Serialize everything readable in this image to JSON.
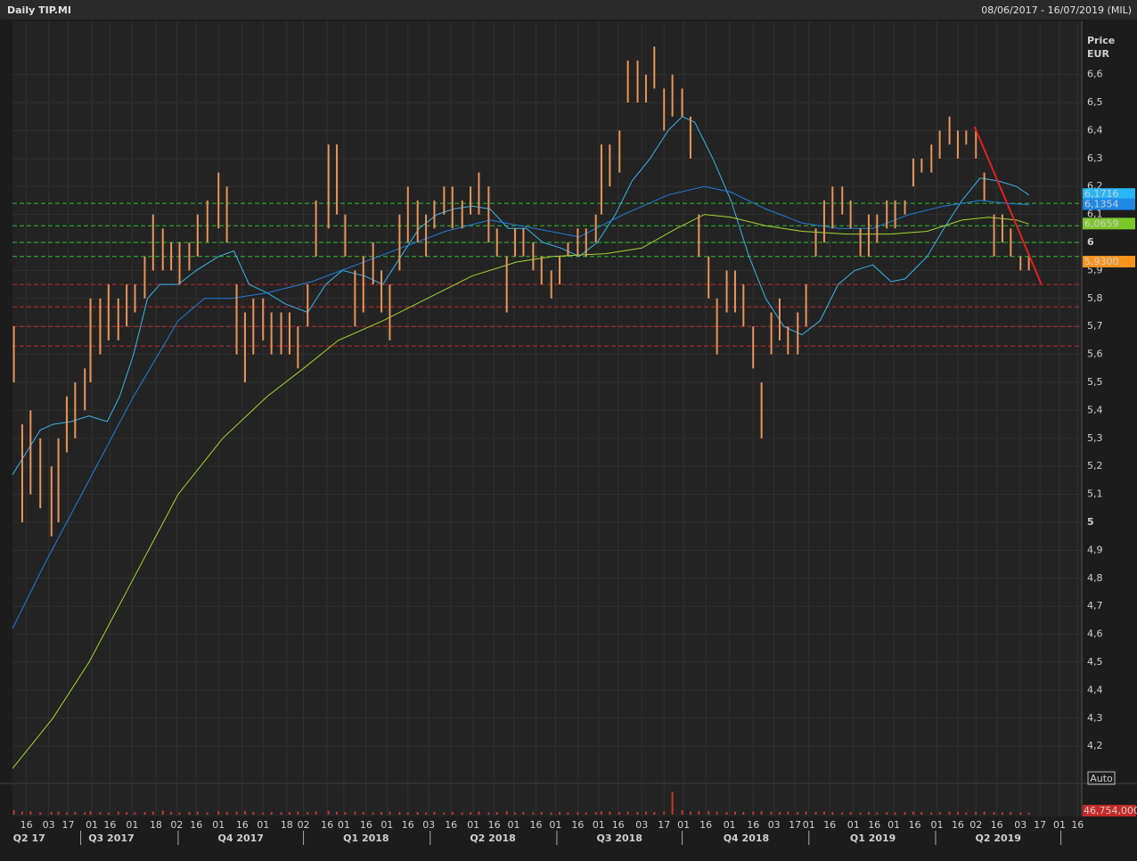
{
  "chart_data": {
    "type": "hlc",
    "title": "Daily TIP.MI",
    "subtitle": "08/06/2017 - 16/07/2019 (MIL)",
    "y_label": "Price",
    "y_unit": "EUR",
    "auto_button": "Auto",
    "color": "#e8955a",
    "xlim": [
      0,
      768
    ],
    "ylim": [
      4.07,
      6.79
    ],
    "grid": true,
    "yticks": [
      {
        "value": 4.2,
        "label": "4,2"
      },
      {
        "value": 4.3,
        "label": "4,3"
      },
      {
        "value": 4.4,
        "label": "4,4"
      },
      {
        "value": 4.5,
        "label": "4,5"
      },
      {
        "value": 4.6,
        "label": "4,6"
      },
      {
        "value": 4.7,
        "label": "4,7"
      },
      {
        "value": 4.8,
        "label": "4,8"
      },
      {
        "value": 4.9,
        "label": "4,9"
      },
      5,
      {
        "value": 5.1,
        "label": "5,1"
      },
      {
        "value": 5.2,
        "label": "5,2"
      },
      {
        "value": 5.3,
        "label": "5,3"
      },
      {
        "value": 5.4,
        "label": "5,4"
      },
      {
        "value": 5.5,
        "label": "5,5"
      },
      {
        "value": 5.6,
        "label": "5,6"
      },
      {
        "value": 5.7,
        "label": "5,7"
      },
      {
        "value": 5.8,
        "label": "5,8"
      },
      {
        "value": 5.9,
        "label": "5,9"
      },
      6,
      {
        "value": 6.1,
        "label": "6,1"
      },
      {
        "value": 6.2,
        "label": "6,2"
      },
      {
        "value": 6.3,
        "label": "6,3"
      },
      {
        "value": 6.4,
        "label": "6,4"
      },
      {
        "value": 6.5,
        "label": "6,5"
      },
      {
        "value": 6.6,
        "label": "6,6"
      }
    ],
    "xticks": [
      {
        "value": 10,
        "label": "16"
      },
      {
        "value": 26,
        "label": "03"
      },
      {
        "value": 40,
        "label": "17"
      },
      {
        "value": 57,
        "label": "01"
      },
      {
        "value": 70,
        "label": "16"
      },
      {
        "value": 86,
        "label": "01"
      },
      {
        "value": 103,
        "label": "18"
      },
      {
        "value": 118,
        "label": "02"
      },
      {
        "value": 132,
        "label": "16"
      },
      {
        "value": 148,
        "label": "01"
      },
      {
        "value": 165,
        "label": "16"
      },
      {
        "value": 180,
        "label": "01"
      },
      {
        "value": 197,
        "label": "18"
      },
      {
        "value": 209,
        "label": "02"
      },
      {
        "value": 226,
        "label": "16"
      },
      {
        "value": 238,
        "label": "01"
      },
      {
        "value": 254,
        "label": "16"
      },
      {
        "value": 269,
        "label": "01"
      },
      {
        "value": 284,
        "label": "16"
      },
      {
        "value": 299,
        "label": "03"
      },
      {
        "value": 315,
        "label": "16"
      },
      {
        "value": 331,
        "label": "01"
      },
      {
        "value": 346,
        "label": "16"
      },
      {
        "value": 360,
        "label": "01"
      },
      {
        "value": 376,
        "label": "16"
      },
      {
        "value": 390,
        "label": "01"
      },
      {
        "value": 406,
        "label": "16"
      },
      {
        "value": 421,
        "label": "01"
      },
      {
        "value": 435,
        "label": "16"
      },
      {
        "value": 452,
        "label": "03"
      },
      {
        "value": 468,
        "label": "17"
      },
      {
        "value": 482,
        "label": "01"
      },
      {
        "value": 498,
        "label": "16"
      },
      {
        "value": 515,
        "label": "01"
      },
      {
        "value": 532,
        "label": "16"
      },
      {
        "value": 547,
        "label": "03"
      },
      {
        "value": 562,
        "label": "17"
      },
      {
        "value": 572,
        "label": "01"
      },
      {
        "value": 587,
        "label": "16"
      },
      {
        "value": 604,
        "label": "01"
      },
      {
        "value": 619,
        "label": "16"
      },
      {
        "value": 633,
        "label": "01"
      },
      {
        "value": 648,
        "label": "16"
      },
      {
        "value": 664,
        "label": "01"
      },
      {
        "value": 679,
        "label": "16"
      },
      {
        "value": 692,
        "label": "02"
      },
      {
        "value": 707,
        "label": "16"
      },
      {
        "value": 724,
        "label": "03"
      },
      {
        "value": 738,
        "label": "17"
      },
      {
        "value": 752,
        "label": "01"
      },
      {
        "value": 765,
        "label": "16"
      }
    ],
    "quarters": [
      {
        "value": 12,
        "label": "Q2 17"
      },
      {
        "value": 71,
        "label": "Q3 2017"
      },
      {
        "value": 164,
        "label": "Q4 2017"
      },
      {
        "value": 254,
        "label": "Q1 2018"
      },
      {
        "value": 345,
        "label": "Q2 2018"
      },
      {
        "value": 436,
        "label": "Q3 2018"
      },
      {
        "value": 527,
        "label": "Q4 2018"
      },
      {
        "value": 618,
        "label": "Q1 2019"
      },
      {
        "value": 708,
        "label": "Q2 2019"
      }
    ],
    "quarter_bounds": [
      49,
      119,
      209,
      300,
      391,
      481,
      572,
      663,
      753
    ],
    "x": [
      1,
      7,
      13,
      20,
      28,
      33,
      39,
      45,
      52,
      56,
      63,
      69,
      76,
      82,
      88,
      95,
      101,
      108,
      114,
      120,
      127,
      133,
      140,
      148,
      154,
      161,
      167,
      173,
      180,
      186,
      193,
      199,
      205,
      212,
      218,
      227,
      233,
      239,
      246,
      252,
      259,
      265,
      271,
      278,
      284,
      291,
      297,
      303,
      310,
      316,
      323,
      329,
      335,
      342,
      348,
      355,
      361,
      367,
      374,
      380,
      387,
      393,
      399,
      406,
      412,
      419,
      423,
      429,
      436,
      442,
      449,
      455,
      461,
      468,
      474,
      481,
      487,
      493,
      500,
      506,
      513,
      519,
      525,
      532,
      538,
      545,
      551,
      557,
      564,
      570,
      577,
      583,
      589,
      596,
      602,
      609,
      615,
      621,
      628,
      634,
      641,
      647,
      653,
      660,
      666,
      673,
      679,
      685,
      692,
      698,
      705,
      711,
      717,
      724,
      730
    ],
    "low": [
      5.5,
      5.0,
      5.1,
      5.05,
      4.95,
      5.0,
      5.25,
      5.3,
      5.4,
      5.5,
      5.6,
      5.65,
      5.65,
      5.7,
      5.75,
      5.8,
      5.9,
      5.9,
      5.9,
      5.85,
      5.9,
      5.95,
      6.0,
      6.05,
      6.0,
      5.6,
      5.5,
      5.6,
      5.65,
      5.6,
      5.6,
      5.6,
      5.55,
      5.7,
      5.95,
      6.05,
      6.1,
      5.95,
      5.7,
      5.75,
      5.85,
      5.75,
      5.65,
      5.9,
      6.0,
      6.0,
      5.95,
      6.05,
      6.1,
      6.05,
      6.05,
      6.1,
      6.1,
      6.0,
      5.95,
      5.75,
      5.95,
      5.95,
      5.9,
      5.85,
      5.8,
      5.85,
      5.95,
      5.95,
      5.95,
      6.0,
      6.1,
      6.2,
      6.25,
      6.5,
      6.5,
      6.5,
      6.55,
      6.4,
      6.45,
      6.45,
      6.3,
      5.95,
      5.8,
      5.6,
      5.75,
      5.75,
      5.7,
      5.55,
      5.3,
      5.6,
      5.65,
      5.6,
      5.6,
      5.7,
      5.95,
      6.0,
      6.05,
      6.1,
      6.05,
      5.95,
      5.95,
      6.0,
      6.05,
      6.05,
      6.1,
      6.2,
      6.25,
      6.25,
      6.3,
      6.35,
      6.3,
      6.35,
      6.3,
      6.15,
      5.95,
      6.0,
      5.95,
      5.9,
      5.9
    ],
    "high": [
      5.7,
      5.35,
      5.4,
      5.3,
      5.2,
      5.3,
      5.45,
      5.5,
      5.55,
      5.8,
      5.8,
      5.85,
      5.8,
      5.85,
      5.85,
      5.95,
      6.1,
      6.05,
      6.0,
      6.0,
      6.0,
      6.1,
      6.15,
      6.25,
      6.2,
      5.85,
      5.75,
      5.8,
      5.8,
      5.75,
      5.75,
      5.75,
      5.7,
      5.85,
      6.15,
      6.35,
      6.35,
      6.1,
      5.9,
      5.95,
      6.0,
      5.9,
      5.85,
      6.1,
      6.2,
      6.15,
      6.1,
      6.15,
      6.2,
      6.2,
      6.15,
      6.2,
      6.25,
      6.2,
      6.05,
      5.95,
      6.05,
      6.05,
      6.0,
      5.95,
      5.9,
      5.95,
      6.0,
      6.05,
      6.05,
      6.1,
      6.35,
      6.35,
      6.4,
      6.65,
      6.65,
      6.6,
      6.7,
      6.55,
      6.6,
      6.55,
      6.45,
      6.1,
      5.95,
      5.8,
      5.9,
      5.9,
      5.85,
      5.7,
      5.5,
      5.75,
      5.8,
      5.7,
      5.75,
      5.85,
      6.05,
      6.15,
      6.2,
      6.2,
      6.15,
      6.05,
      6.1,
      6.1,
      6.15,
      6.15,
      6.15,
      6.3,
      6.3,
      6.35,
      6.4,
      6.45,
      6.4,
      6.4,
      6.4,
      6.25,
      6.1,
      6.1,
      6.05,
      5.95,
      5.95
    ],
    "moving_averages": [
      {
        "color": "#3ab4ee",
        "x": [
          0,
          10,
          20,
          29,
          42,
          55,
          68,
          77,
          87,
          97,
          106,
          119,
          132,
          148,
          159,
          170,
          183,
          196,
          212,
          225,
          237,
          253,
          266,
          279,
          292,
          305,
          317,
          330,
          343,
          356,
          369,
          381,
          394,
          407,
          420,
          433,
          445,
          458,
          471,
          481,
          490,
          503,
          516,
          529,
          541,
          554,
          567,
          580,
          593,
          605,
          618,
          631,
          641,
          657,
          669,
          682,
          695,
          708,
          721,
          730
        ],
        "values": [
          5.17,
          5.25,
          5.33,
          5.35,
          5.36,
          5.38,
          5.36,
          5.45,
          5.6,
          5.8,
          5.85,
          5.85,
          5.9,
          5.95,
          5.97,
          5.85,
          5.82,
          5.78,
          5.75,
          5.85,
          5.9,
          5.88,
          5.85,
          5.95,
          6.05,
          6.1,
          6.12,
          6.13,
          6.12,
          6.05,
          6.05,
          6.0,
          5.98,
          5.95,
          6.0,
          6.1,
          6.22,
          6.3,
          6.4,
          6.45,
          6.43,
          6.3,
          6.15,
          5.95,
          5.8,
          5.7,
          5.67,
          5.72,
          5.85,
          5.9,
          5.92,
          5.86,
          5.87,
          5.95,
          6.05,
          6.15,
          6.23,
          6.22,
          6.2,
          6.17
        ]
      },
      {
        "color": "#1e7fe0",
        "x": [
          0,
          23,
          55,
          87,
          119,
          138,
          157,
          183,
          215,
          247,
          279,
          311,
          343,
          375,
          407,
          439,
          471,
          497,
          516,
          541,
          567,
          593,
          618,
          644,
          669,
          695,
          714,
          730
        ],
        "values": [
          4.62,
          4.85,
          5.15,
          5.45,
          5.72,
          5.8,
          5.8,
          5.82,
          5.86,
          5.92,
          5.98,
          6.04,
          6.08,
          6.05,
          6.02,
          6.1,
          6.17,
          6.2,
          6.18,
          6.12,
          6.07,
          6.05,
          6.05,
          6.1,
          6.13,
          6.15,
          6.14,
          6.135
        ]
      },
      {
        "color": "#a6d62c",
        "x": [
          0,
          29,
          55,
          87,
          119,
          151,
          183,
          209,
          234,
          266,
          298,
          330,
          362,
          388,
          426,
          452,
          477,
          497,
          516,
          541,
          567,
          599,
          631,
          657,
          682,
          701,
          721,
          730
        ],
        "values": [
          4.12,
          4.3,
          4.5,
          4.8,
          5.1,
          5.3,
          5.45,
          5.55,
          5.65,
          5.72,
          5.8,
          5.88,
          5.93,
          5.95,
          5.96,
          5.98,
          6.05,
          6.1,
          6.09,
          6.06,
          6.04,
          6.03,
          6.03,
          6.04,
          6.08,
          6.09,
          6.08,
          6.066
        ]
      }
    ],
    "levels": [
      {
        "value": 6.14,
        "color": "#2fbf2f"
      },
      {
        "value": 6.06,
        "color": "#2fbf2f"
      },
      {
        "value": 6.0,
        "color": "#2fbf2f"
      },
      {
        "value": 5.95,
        "color": "#2fbf2f"
      },
      {
        "value": 5.85,
        "color": "#c62828"
      },
      {
        "value": 5.77,
        "color": "#c62828"
      },
      {
        "value": 5.7,
        "color": "#c62828"
      },
      {
        "value": 5.63,
        "color": "#c62828"
      }
    ],
    "trendline": {
      "x": [
        691,
        739
      ],
      "values": [
        6.414,
        5.851
      ],
      "color": "#e32020"
    },
    "price_badges": [
      {
        "value": 6.1716,
        "label": "6,1716",
        "color": "#29b6f6"
      },
      {
        "value": 6.1354,
        "label": "6,1354",
        "color": "#1e88e5"
      },
      {
        "value": 6.0659,
        "label": "6,0659",
        "color": "#7cc82a"
      },
      {
        "value": 5.93,
        "label": "5,9300",
        "color": "#f7941d"
      }
    ],
    "volume": {
      "color": "#c0392b",
      "ylim": [
        0,
        400000000
      ],
      "values": [
        60000000,
        40000000,
        45000000,
        30000000,
        35000000,
        40000000,
        30000000,
        35000000,
        30000000,
        45000000,
        35000000,
        30000000,
        40000000,
        35000000,
        30000000,
        35000000,
        40000000,
        55000000,
        35000000,
        30000000,
        35000000,
        40000000,
        30000000,
        45000000,
        35000000,
        40000000,
        50000000,
        35000000,
        30000000,
        35000000,
        30000000,
        35000000,
        40000000,
        35000000,
        45000000,
        50000000,
        40000000,
        35000000,
        40000000,
        35000000,
        30000000,
        35000000,
        40000000,
        35000000,
        30000000,
        35000000,
        30000000,
        35000000,
        30000000,
        35000000,
        30000000,
        35000000,
        40000000,
        30000000,
        35000000,
        45000000,
        30000000,
        35000000,
        30000000,
        35000000,
        30000000,
        35000000,
        30000000,
        35000000,
        30000000,
        35000000,
        45000000,
        40000000,
        35000000,
        40000000,
        35000000,
        40000000,
        35000000,
        40000000,
        300000000,
        60000000,
        40000000,
        45000000,
        50000000,
        40000000,
        35000000,
        40000000,
        35000000,
        40000000,
        45000000,
        40000000,
        35000000,
        40000000,
        35000000,
        40000000,
        35000000,
        40000000,
        35000000,
        30000000,
        35000000,
        30000000,
        35000000,
        30000000,
        35000000,
        30000000,
        35000000,
        40000000,
        35000000,
        30000000,
        35000000,
        40000000,
        35000000,
        30000000,
        35000000,
        40000000,
        35000000,
        30000000,
        35000000,
        30000000,
        25000000
      ]
    },
    "volume_badge": {
      "value": 46754000,
      "label": "46,754,000"
    }
  }
}
